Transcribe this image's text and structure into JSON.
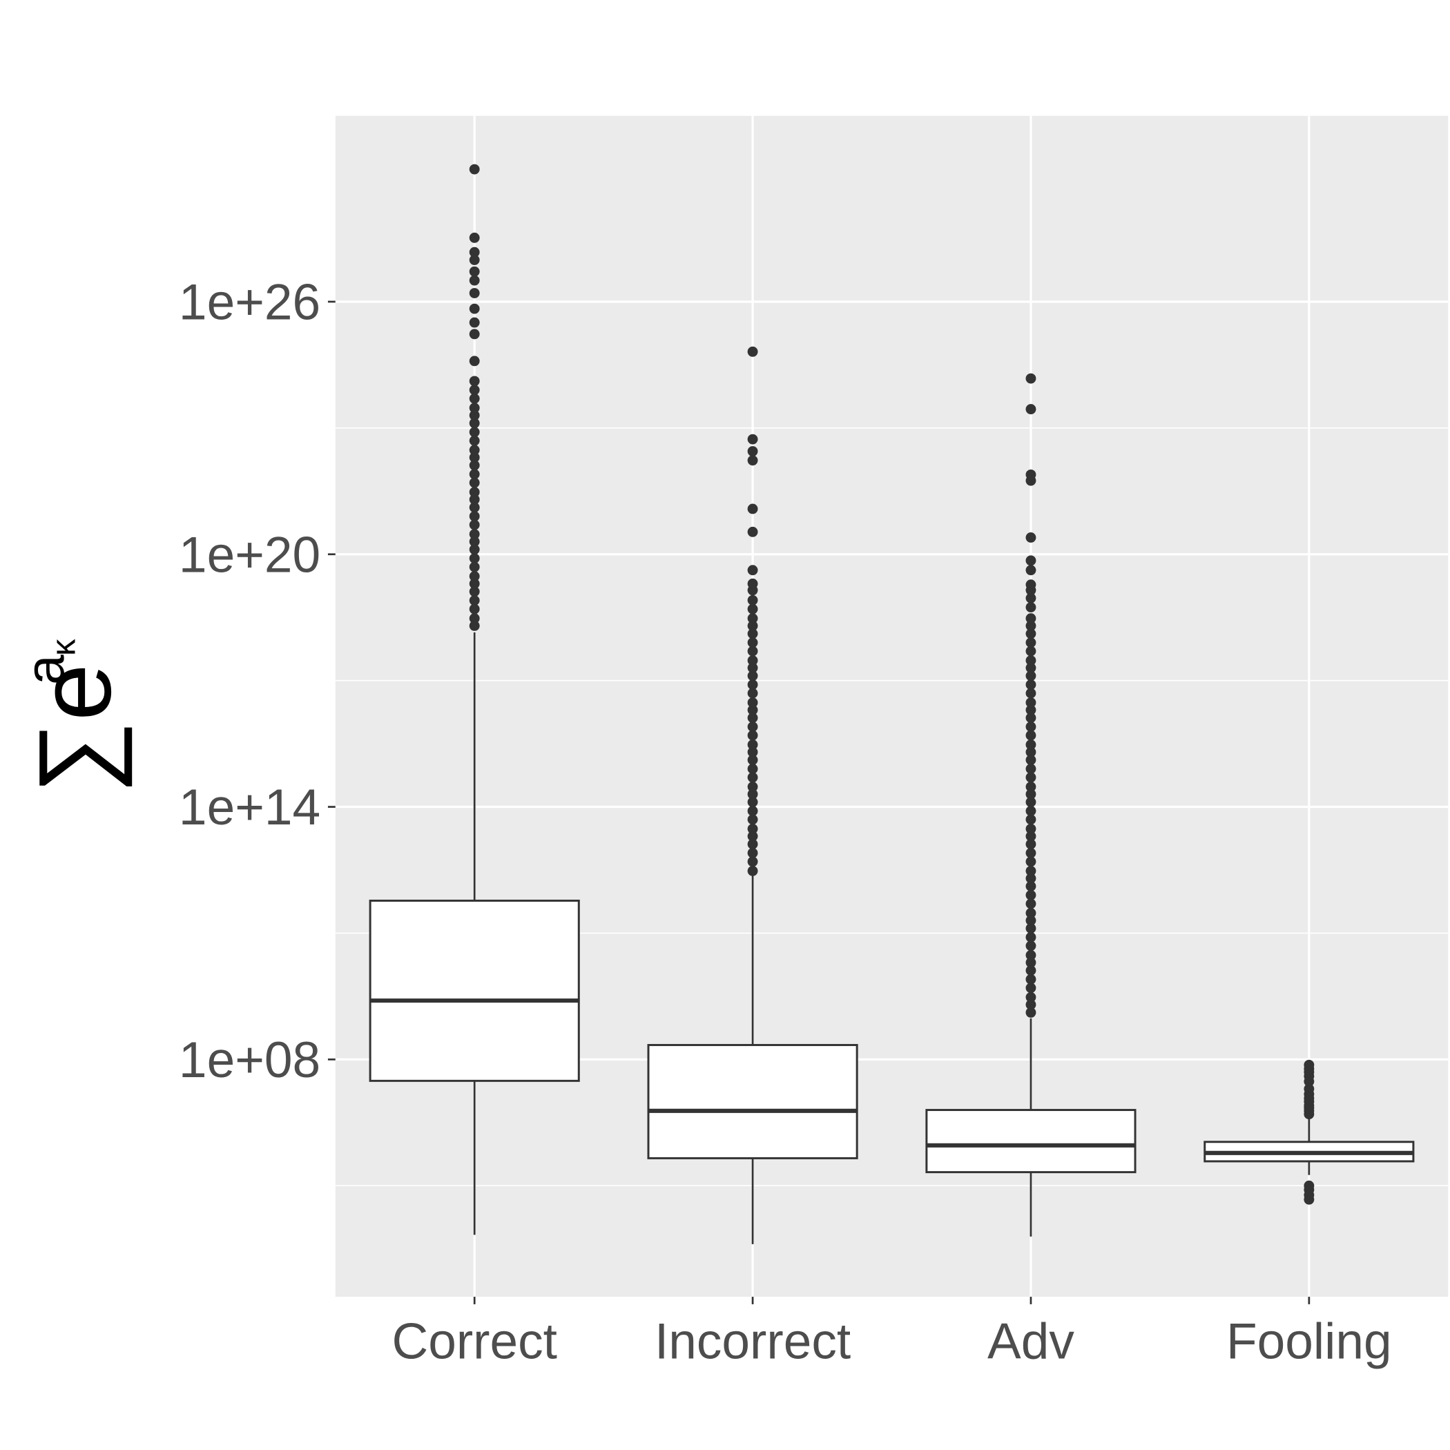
{
  "chart_data": {
    "type": "box",
    "categories": [
      "Correct",
      "Incorrect",
      "Adv",
      "Fooling"
    ],
    "log_y": true,
    "ylim": [
      230,
      2.6e+30
    ],
    "yticks": [
      {
        "value": 100000000.0,
        "label": "1e+08"
      },
      {
        "value": 100000000000000.0,
        "label": "1e+14"
      },
      {
        "value": 1e+20,
        "label": "1e+20"
      },
      {
        "value": 1e+26,
        "label": "1e+26"
      }
    ],
    "yminor": [
      100000.0,
      100000000000.0,
      1e+17,
      1e+23
    ],
    "grid": true,
    "ylabel": {
      "base": "∑e",
      "sup": "a",
      "sub": "κ"
    },
    "box_fill": "#ffffff",
    "line_color": "#333333",
    "panel_color": "#ebebeb",
    "boxes": [
      {
        "whisker_low": 6800.0,
        "q1": 31000000.0,
        "median": 2500000000.0,
        "q3": 590000000000.0,
        "whisker_high": 1.4e+18,
        "outliers": [
          2e+18,
          3e+18,
          5e+18,
          8e+18,
          1.3e+19,
          2e+19,
          3e+19,
          5e+19,
          8e+19,
          1.3e+20,
          2e+20,
          3e+20,
          5e+20,
          8e+20,
          1.3e+21,
          2e+21,
          3e+21,
          5e+21,
          8e+21,
          1.3e+22,
          2e+22,
          3e+22,
          5e+22,
          8e+22,
          1.3e+23,
          2e+23,
          3e+23,
          5e+23,
          8e+23,
          1.3e+24,
          3.9e+24,
          1.7e+25,
          3.2e+25,
          6.8e+25,
          1.6e+26,
          3.2e+26,
          5.2e+26,
          9.8e+26,
          1.5e+27,
          3.3e+27,
          1.4e+29
        ]
      },
      {
        "whisker_low": 4100.0,
        "q1": 450000.0,
        "median": 6000000.0,
        "q3": 220000000.0,
        "whisker_high": 2300000000000.0,
        "outliers": [
          3000000000000.0,
          5000000000000.0,
          8000000000000.0,
          13000000000000.0,
          20000000000000.0,
          30000000000000.0,
          50000000000000.0,
          80000000000000.0,
          130000000000000.0,
          200000000000000.0,
          300000000000000.0,
          500000000000000.0,
          800000000000000.0,
          1300000000000000.0,
          2000000000000000.0,
          3000000000000000.0,
          5000000000000000.0,
          8000000000000000.0,
          1.3e+16,
          2e+16,
          3e+16,
          5e+16,
          8e+16,
          1.3e+17,
          2e+17,
          3e+17,
          5e+17,
          8e+17,
          1.3e+18,
          2e+18,
          3e+18,
          5e+18,
          8.1e+18,
          1.4e+19,
          2e+19,
          4.2e+19,
          3.4e+20,
          1.2e+21,
          1.7e+22,
          2.8e+22,
          5.4e+22,
          6.5e+24
        ]
      },
      {
        "whisker_low": 6200.0,
        "q1": 210000.0,
        "median": 910000.0,
        "q3": 6300000.0,
        "whisker_high": 950000000.0,
        "outliers": [
          1300000000.0,
          2000000000.0,
          3000000000.0,
          5000000000.0,
          8000000000.0,
          13000000000.0,
          20000000000.0,
          30000000000.0,
          50000000000.0,
          80000000000.0,
          130000000000.0,
          200000000000.0,
          300000000000.0,
          500000000000.0,
          800000000000.0,
          1300000000000.0,
          2000000000000.0,
          3000000000000.0,
          5000000000000.0,
          8000000000000.0,
          13000000000000.0,
          20000000000000.0,
          30000000000000.0,
          50000000000000.0,
          80000000000000.0,
          130000000000000.0,
          200000000000000.0,
          300000000000000.0,
          500000000000000.0,
          800000000000000.0,
          1300000000000000.0,
          2000000000000000.0,
          3000000000000000.0,
          5000000000000000.0,
          8000000000000000.0,
          1.3e+16,
          2e+16,
          3e+16,
          5e+16,
          8e+16,
          1.3e+17,
          2e+17,
          3e+17,
          5e+17,
          8e+17,
          1.3e+18,
          2e+18,
          3e+18,
          5.5e+18,
          9.1e+18,
          1.4e+19,
          1.9e+19,
          4.2e+19,
          7.1e+19,
          2.5e+20,
          5.6e+21,
          7.8e+21,
          2.8e+23,
          1.5e+24
        ]
      },
      {
        "whisker_low": 180000.0,
        "q1": 380000.0,
        "median": 600000.0,
        "q3": 1100000.0,
        "whisker_high": 4500000.0,
        "outliers": [
          5000000.0,
          6000000.0,
          7000000.0,
          8000000.0,
          10000000.0,
          12000000.0,
          15000000.0,
          20000000.0,
          30000000.0,
          40000000.0,
          50000000.0,
          60000000.0,
          74000000.0,
          100000.0,
          80000.0,
          60000.0,
          47000.0
        ]
      }
    ]
  }
}
